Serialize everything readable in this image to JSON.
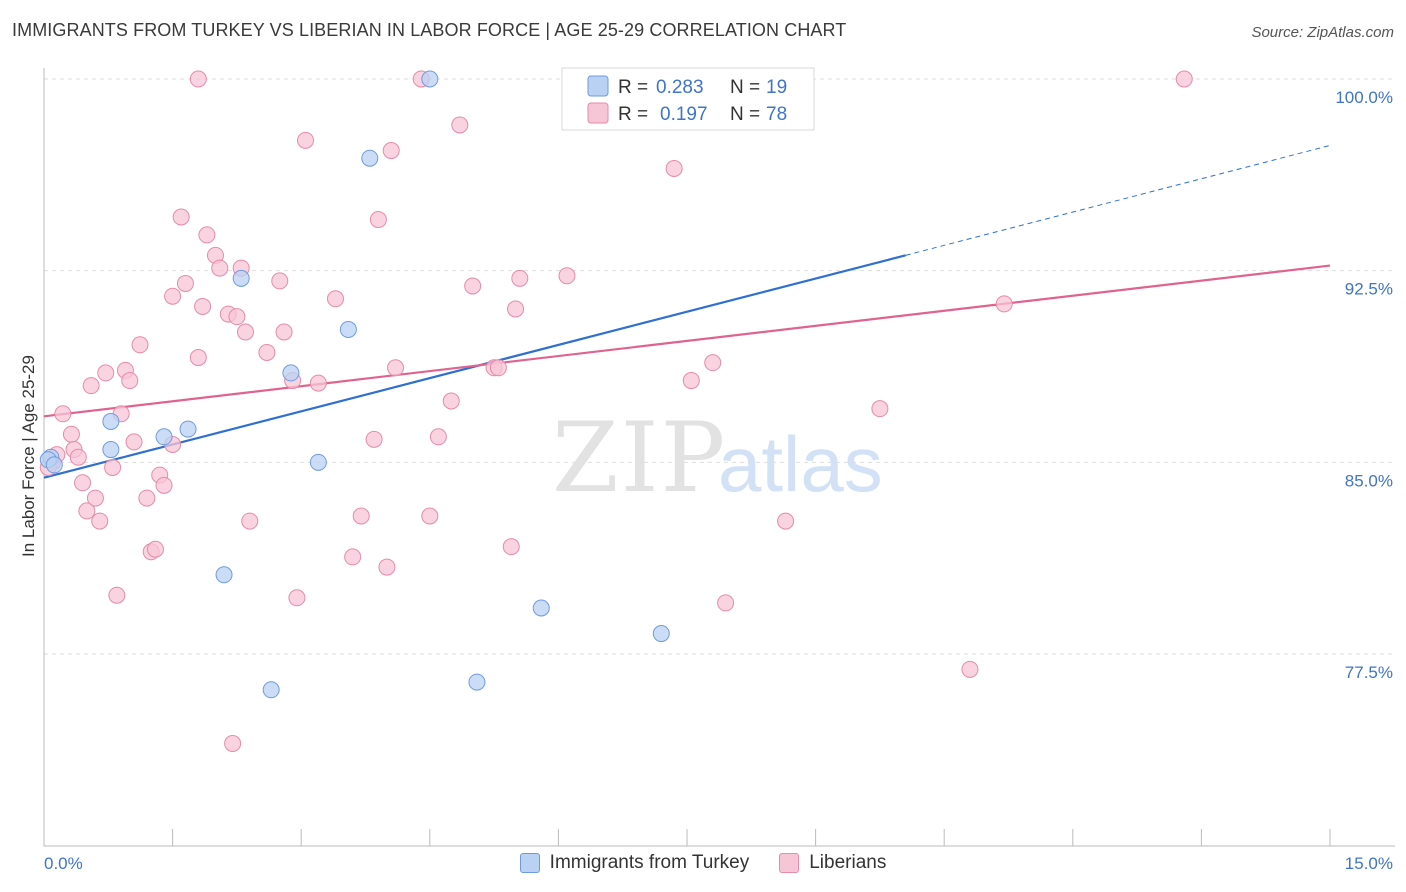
{
  "header": {
    "title": "IMMIGRANTS FROM TURKEY VS LIBERIAN IN LABOR FORCE | AGE 25-29 CORRELATION CHART",
    "source": "Source: ZipAtlas.com"
  },
  "watermark": {
    "zip": "ZIP",
    "atlas": "atlas"
  },
  "legend_box": {
    "rows": [
      {
        "r_label": "R =",
        "r_value": "0.283",
        "n_label": "N =",
        "n_value": "19"
      },
      {
        "r_label": "R =",
        "r_value": "0.197",
        "n_label": "N =",
        "n_value": "78"
      }
    ]
  },
  "bottom_legend": {
    "items": [
      "Immigrants from Turkey",
      "Liberians"
    ]
  },
  "colors": {
    "turkey_fill": "#b9d1f3",
    "turkey_stroke": "#6e9be0",
    "turkey_line": "#2f6fce",
    "liberian_fill": "#f7c6d6",
    "liberian_stroke": "#e88aa8",
    "liberian_line": "#e0638f",
    "tick_text": "#3f74c9",
    "grid": "#dddddd"
  },
  "chart_data": {
    "type": "scatter",
    "title": "IMMIGRANTS FROM TURKEY VS LIBERIAN IN LABOR FORCE | AGE 25-29 CORRELATION CHART",
    "xlabel": "",
    "ylabel": "In Labor Force | Age 25-29",
    "xlim": [
      0,
      15
    ],
    "ylim": [
      70.5,
      101.5
    ],
    "x_tick_labels": [
      "0.0%",
      "15.0%"
    ],
    "y_ticks": [
      77.5,
      85.0,
      92.5,
      100.0
    ],
    "y_tick_labels": [
      "77.5%",
      "85.0%",
      "92.5%",
      "100.0%"
    ],
    "grid": true,
    "legend_position": "top-center",
    "series": [
      {
        "name": "Immigrants from Turkey",
        "R": 0.283,
        "N": 19,
        "trend": {
          "x0": 0.0,
          "y0": 84.4,
          "x1": 10.05,
          "y1": 93.1,
          "dashed_to_x": 15.0,
          "dashed_to_y": 97.4
        },
        "points": [
          {
            "x": 0.08,
            "y": 85.2
          },
          {
            "x": 0.78,
            "y": 86.6
          },
          {
            "x": 0.78,
            "y": 85.5
          },
          {
            "x": 1.4,
            "y": 86.0
          },
          {
            "x": 1.68,
            "y": 86.3
          },
          {
            "x": 2.3,
            "y": 92.2
          },
          {
            "x": 2.88,
            "y": 88.5
          },
          {
            "x": 3.2,
            "y": 85.0
          },
          {
            "x": 3.55,
            "y": 90.2
          },
          {
            "x": 3.8,
            "y": 96.9
          },
          {
            "x": 4.5,
            "y": 100.0
          },
          {
            "x": 8.6,
            "y": 100.0
          },
          {
            "x": 2.1,
            "y": 80.6
          },
          {
            "x": 2.65,
            "y": 76.1
          },
          {
            "x": 5.8,
            "y": 79.3
          },
          {
            "x": 5.05,
            "y": 76.4
          },
          {
            "x": 7.2,
            "y": 78.3
          },
          {
            "x": 0.05,
            "y": 85.1
          },
          {
            "x": 0.12,
            "y": 84.9
          }
        ]
      },
      {
        "name": "Liberians",
        "R": 0.197,
        "N": 78,
        "trend": {
          "x0": 0.0,
          "y0": 86.8,
          "x1": 15.0,
          "y1": 92.7
        },
        "points": [
          {
            "x": 0.1,
            "y": 85.0
          },
          {
            "x": 0.15,
            "y": 85.3
          },
          {
            "x": 0.22,
            "y": 86.9
          },
          {
            "x": 0.32,
            "y": 86.1
          },
          {
            "x": 0.45,
            "y": 84.2
          },
          {
            "x": 0.5,
            "y": 83.1
          },
          {
            "x": 0.55,
            "y": 88.0
          },
          {
            "x": 0.6,
            "y": 83.6
          },
          {
            "x": 0.65,
            "y": 82.7
          },
          {
            "x": 0.72,
            "y": 88.5
          },
          {
            "x": 0.8,
            "y": 84.8
          },
          {
            "x": 0.85,
            "y": 79.8
          },
          {
            "x": 0.9,
            "y": 86.9
          },
          {
            "x": 0.95,
            "y": 88.6
          },
          {
            "x": 1.0,
            "y": 88.2
          },
          {
            "x": 1.05,
            "y": 85.8
          },
          {
            "x": 1.12,
            "y": 89.6
          },
          {
            "x": 1.2,
            "y": 83.6
          },
          {
            "x": 1.25,
            "y": 81.5
          },
          {
            "x": 1.3,
            "y": 81.6
          },
          {
            "x": 1.35,
            "y": 84.5
          },
          {
            "x": 1.4,
            "y": 84.1
          },
          {
            "x": 1.5,
            "y": 85.7
          },
          {
            "x": 1.5,
            "y": 91.5
          },
          {
            "x": 1.6,
            "y": 94.6
          },
          {
            "x": 1.65,
            "y": 92.0
          },
          {
            "x": 1.8,
            "y": 89.1
          },
          {
            "x": 1.8,
            "y": 100.0
          },
          {
            "x": 1.85,
            "y": 91.1
          },
          {
            "x": 1.9,
            "y": 93.9
          },
          {
            "x": 2.0,
            "y": 93.1
          },
          {
            "x": 2.05,
            "y": 92.6
          },
          {
            "x": 2.15,
            "y": 90.8
          },
          {
            "x": 2.2,
            "y": 74.0
          },
          {
            "x": 2.25,
            "y": 90.7
          },
          {
            "x": 2.3,
            "y": 92.6
          },
          {
            "x": 2.35,
            "y": 90.1
          },
          {
            "x": 2.4,
            "y": 82.7
          },
          {
            "x": 2.6,
            "y": 89.3
          },
          {
            "x": 2.75,
            "y": 92.1
          },
          {
            "x": 2.8,
            "y": 90.1
          },
          {
            "x": 2.9,
            "y": 88.2
          },
          {
            "x": 2.95,
            "y": 79.7
          },
          {
            "x": 3.05,
            "y": 97.6
          },
          {
            "x": 3.2,
            "y": 88.1
          },
          {
            "x": 3.4,
            "y": 91.4
          },
          {
            "x": 3.6,
            "y": 81.3
          },
          {
            "x": 3.7,
            "y": 82.9
          },
          {
            "x": 3.85,
            "y": 85.9
          },
          {
            "x": 3.9,
            "y": 94.5
          },
          {
            "x": 4.0,
            "y": 80.9
          },
          {
            "x": 4.05,
            "y": 97.2
          },
          {
            "x": 4.1,
            "y": 88.7
          },
          {
            "x": 4.4,
            "y": 100.0
          },
          {
            "x": 4.5,
            "y": 82.9
          },
          {
            "x": 4.6,
            "y": 86.0
          },
          {
            "x": 4.75,
            "y": 87.4
          },
          {
            "x": 4.85,
            "y": 98.2
          },
          {
            "x": 5.0,
            "y": 91.9
          },
          {
            "x": 5.25,
            "y": 88.7
          },
          {
            "x": 5.3,
            "y": 88.7
          },
          {
            "x": 5.45,
            "y": 81.7
          },
          {
            "x": 5.5,
            "y": 91.0
          },
          {
            "x": 5.55,
            "y": 92.2
          },
          {
            "x": 6.1,
            "y": 92.3
          },
          {
            "x": 7.05,
            "y": 100.0
          },
          {
            "x": 7.35,
            "y": 96.5
          },
          {
            "x": 7.55,
            "y": 88.2
          },
          {
            "x": 7.8,
            "y": 88.9
          },
          {
            "x": 7.95,
            "y": 79.5
          },
          {
            "x": 8.65,
            "y": 82.7
          },
          {
            "x": 9.75,
            "y": 87.1
          },
          {
            "x": 10.8,
            "y": 76.9
          },
          {
            "x": 11.2,
            "y": 91.2
          },
          {
            "x": 13.3,
            "y": 100.0
          },
          {
            "x": 0.35,
            "y": 85.5
          },
          {
            "x": 0.4,
            "y": 85.2
          },
          {
            "x": 0.05,
            "y": 84.8
          }
        ]
      }
    ]
  }
}
